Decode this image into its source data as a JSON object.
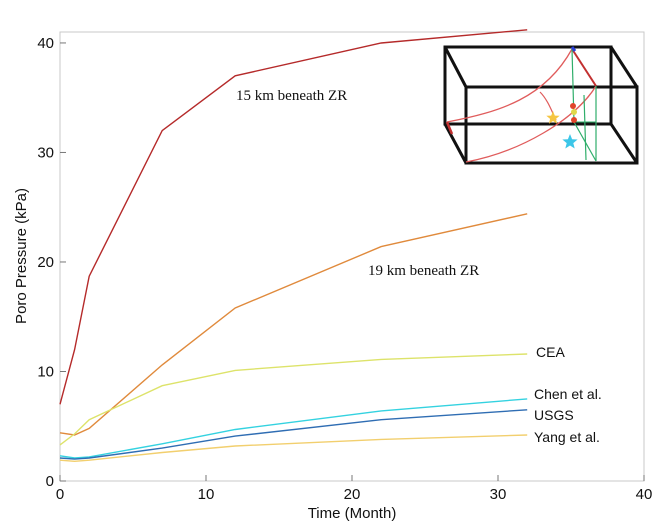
{
  "chart_data": {
    "type": "line",
    "title": "",
    "xlabel": "Time (Month)",
    "ylabel": "Poro Pressure (kPa)",
    "xlim": [
      0,
      40
    ],
    "ylim": [
      0,
      41
    ],
    "xticks": [
      0,
      10,
      20,
      30,
      40
    ],
    "yticks": [
      0,
      10,
      20,
      30,
      40
    ],
    "grid": false,
    "series": [
      {
        "label": "15 km beneath ZR",
        "color": "#b52a2a",
        "x": [
          0,
          1,
          2,
          7,
          12,
          22,
          32
        ],
        "y": [
          7,
          12,
          18.7,
          32,
          37,
          40,
          41.2
        ]
      },
      {
        "label": "19 km beneath ZR",
        "color": "#e08a3c",
        "x": [
          0,
          1,
          2,
          7,
          12,
          22,
          32
        ],
        "y": [
          4.4,
          4.2,
          4.8,
          10.6,
          15.8,
          21.4,
          24.4
        ]
      },
      {
        "label": "CEA",
        "color": "#dde36a",
        "x": [
          0,
          1,
          2,
          7,
          12,
          22,
          32
        ],
        "y": [
          3.3,
          4.3,
          5.6,
          8.7,
          10.1,
          11.1,
          11.6
        ]
      },
      {
        "label": "Chen et al.",
        "color": "#34d2e0",
        "x": [
          0,
          1,
          2,
          7,
          12,
          22,
          32
        ],
        "y": [
          2.3,
          2.1,
          2.2,
          3.4,
          4.7,
          6.4,
          7.5
        ]
      },
      {
        "label": "USGS",
        "color": "#2f6db3",
        "x": [
          0,
          1,
          2,
          7,
          12,
          22,
          32
        ],
        "y": [
          2.1,
          2.0,
          2.1,
          3.0,
          4.1,
          5.6,
          6.5
        ]
      },
      {
        "label": "Yang et al.",
        "color": "#f2cf6e",
        "x": [
          0,
          1,
          2,
          7,
          12,
          22,
          32
        ],
        "y": [
          1.9,
          1.8,
          1.9,
          2.6,
          3.2,
          3.8,
          4.2
        ]
      }
    ]
  },
  "inset": {
    "description_icon": "3d-fault-block-icon",
    "star_colors": [
      "#f5c542",
      "#3cc6e8"
    ]
  }
}
